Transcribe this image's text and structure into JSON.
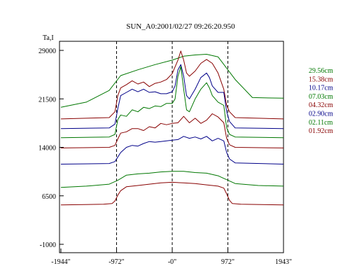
{
  "chart_data": {
    "type": "line",
    "title": "SUN_A0:2001/02/27 09:26:20.950",
    "ylabel": "Ta,I",
    "xlabel": "",
    "xlim": [
      -1944,
      1943
    ],
    "ylim": [
      -1000,
      33500
    ],
    "x_ticks": [
      {
        "value": -1944,
        "label": "-1944\""
      },
      {
        "value": -972,
        "label": "-972\""
      },
      {
        "value": 0,
        "label": "-0\""
      },
      {
        "value": 972,
        "label": "972\""
      },
      {
        "value": 1943,
        "label": "1943\""
      }
    ],
    "y_ticks": [
      {
        "value": 29000,
        "label": "29000"
      },
      {
        "value": 21500,
        "label": "21500"
      },
      {
        "value": 14000,
        "label": "14000"
      },
      {
        "value": 6500,
        "label": "6500"
      },
      {
        "value": -1000,
        "label": "-1000"
      }
    ],
    "reference_lines_x": [
      -972,
      0,
      972
    ],
    "grid": false,
    "legend_position": "right",
    "series": [
      {
        "name": "29.56cm",
        "color": "#007700",
        "x": [
          -1944,
          -1500,
          -1100,
          -900,
          -600,
          -300,
          0,
          200,
          400,
          600,
          800,
          1100,
          1400,
          1943
        ],
        "y": [
          20200,
          21000,
          22800,
          25100,
          26000,
          26800,
          27500,
          28100,
          28300,
          28400,
          28000,
          24500,
          21700,
          21600
        ]
      },
      {
        "name": "15.38cm",
        "color": "#880000",
        "x": [
          -1944,
          -1100,
          -1000,
          -950,
          -900,
          -800,
          -700,
          -600,
          -500,
          -400,
          -300,
          -200,
          -100,
          0,
          100,
          150,
          200,
          250,
          300,
          400,
          500,
          600,
          700,
          800,
          900,
          950,
          1000,
          1100,
          1943
        ],
        "y": [
          18400,
          18600,
          19500,
          22000,
          23200,
          23700,
          24300,
          23800,
          24100,
          23400,
          23900,
          24100,
          24500,
          25400,
          27500,
          28900,
          27500,
          25500,
          25000,
          25800,
          27000,
          27600,
          27000,
          25500,
          23000,
          20500,
          19500,
          18600,
          18400
        ]
      },
      {
        "name": "10.17cm",
        "color": "#000088",
        "x": [
          -1944,
          -1100,
          -1000,
          -950,
          -900,
          -800,
          -700,
          -600,
          -500,
          -400,
          -300,
          -200,
          -100,
          0,
          50,
          100,
          150,
          200,
          250,
          300,
          400,
          500,
          600,
          650,
          700,
          800,
          900,
          950,
          1000,
          1100,
          1943
        ],
        "y": [
          16900,
          17000,
          17600,
          20000,
          22000,
          22500,
          23000,
          22600,
          23000,
          22500,
          22600,
          22300,
          22300,
          22600,
          23500,
          26000,
          26800,
          25000,
          22000,
          21500,
          23000,
          24800,
          25500,
          24800,
          23500,
          22500,
          22500,
          19500,
          18000,
          17000,
          16900
        ]
      },
      {
        "name": "07.03cm",
        "color": "#007700",
        "x": [
          -1944,
          -1100,
          -1000,
          -950,
          -900,
          -800,
          -700,
          -600,
          -500,
          -400,
          -300,
          -200,
          -100,
          0,
          50,
          100,
          150,
          200,
          250,
          300,
          400,
          500,
          600,
          650,
          700,
          800,
          900,
          950,
          1000,
          1100,
          1943
        ],
        "y": [
          15500,
          15600,
          16000,
          18300,
          19000,
          18800,
          19800,
          19500,
          20200,
          20000,
          20400,
          20300,
          20800,
          20800,
          21500,
          25000,
          26500,
          23000,
          19800,
          19500,
          21500,
          23000,
          24000,
          23200,
          22000,
          21000,
          20500,
          17000,
          16000,
          15600,
          15500
        ]
      },
      {
        "name": "04.32cm",
        "color": "#880000",
        "x": [
          -1944,
          -1100,
          -1000,
          -950,
          -900,
          -800,
          -700,
          -600,
          -500,
          -400,
          -300,
          -200,
          -100,
          0,
          100,
          200,
          300,
          400,
          500,
          600,
          700,
          800,
          900,
          950,
          1000,
          1100,
          1943
        ],
        "y": [
          13900,
          14000,
          14300,
          15300,
          16200,
          16400,
          16900,
          16900,
          16600,
          17200,
          17000,
          17700,
          17500,
          17700,
          17800,
          18800,
          17800,
          18500,
          17700,
          18200,
          19200,
          18700,
          17800,
          15400,
          14400,
          14000,
          13900
        ]
      },
      {
        "name": "02.90cm",
        "color": "#000088",
        "x": [
          -1944,
          -1100,
          -1000,
          -950,
          -900,
          -800,
          -700,
          -600,
          -500,
          -400,
          -300,
          -200,
          -100,
          0,
          100,
          200,
          300,
          400,
          500,
          600,
          700,
          800,
          900,
          950,
          1000,
          1100,
          1943
        ],
        "y": [
          11400,
          11500,
          11800,
          12500,
          13200,
          14000,
          14300,
          14200,
          14600,
          14900,
          14800,
          14900,
          15000,
          15100,
          15200,
          15700,
          15400,
          15600,
          15300,
          15700,
          15000,
          15400,
          15000,
          13200,
          12200,
          11600,
          11400
        ]
      },
      {
        "name": "02.11cm",
        "color": "#007700",
        "x": [
          -1944,
          -1500,
          -1100,
          -950,
          -800,
          -600,
          -400,
          -200,
          0,
          200,
          400,
          600,
          800,
          950,
          1100,
          1500,
          1943
        ],
        "y": [
          7800,
          8000,
          8300,
          8900,
          9700,
          9900,
          10000,
          10200,
          10300,
          10300,
          10100,
          10000,
          9600,
          9000,
          8400,
          8100,
          8000
        ]
      },
      {
        "name": "01.92cm",
        "color": "#880000",
        "x": [
          -1944,
          -1200,
          -1050,
          -1000,
          -950,
          -900,
          -800,
          -600,
          -400,
          -200,
          0,
          200,
          400,
          600,
          800,
          900,
          950,
          1000,
          1050,
          1200,
          1943
        ],
        "y": [
          5100,
          5200,
          5300,
          5700,
          6600,
          7300,
          7900,
          8100,
          8300,
          8500,
          8600,
          8500,
          8400,
          8200,
          8000,
          7700,
          6800,
          5800,
          5300,
          5200,
          5100
        ]
      }
    ]
  }
}
